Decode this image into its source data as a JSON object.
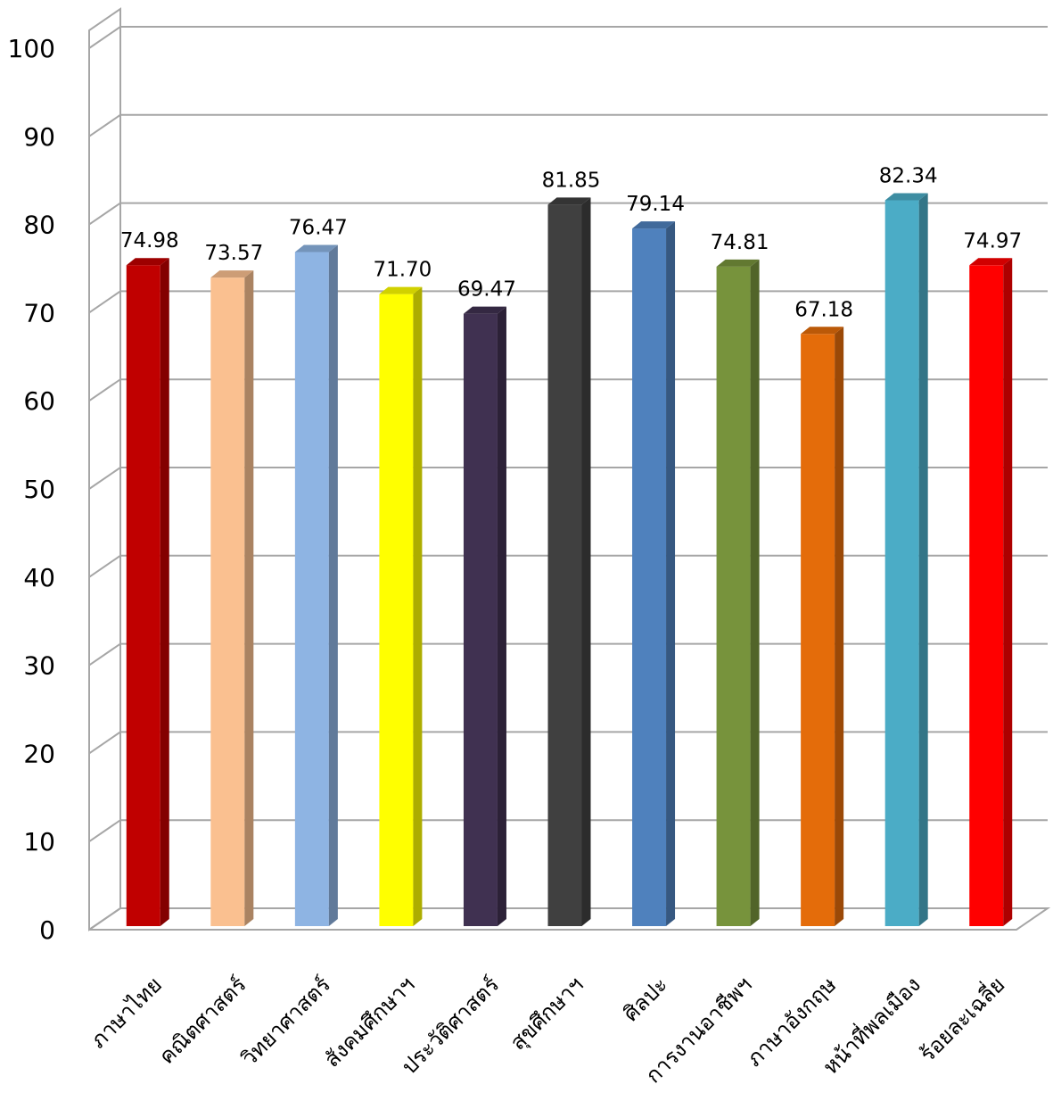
{
  "chart_data": {
    "type": "bar",
    "title": "",
    "xlabel": "",
    "ylabel": "",
    "ylim": [
      0,
      100
    ],
    "yticks": [
      0,
      10,
      20,
      30,
      40,
      50,
      60,
      70,
      80,
      90,
      100
    ],
    "grid": true,
    "style": "3d-column",
    "categories": [
      "ภาษาไทย",
      "คณิตศาสตร์",
      "วิทยาศาสตร์",
      "สังคมศึกษาฯ",
      "ประวัติศาสตร์",
      "สุขศึกษาฯ",
      "ศิลปะ",
      "การงานอาชีพฯ",
      "ภาษาอังกฤษ",
      "หน้าที่พลเมือง",
      "ร้อยละเฉลี่ย"
    ],
    "values": [
      74.98,
      73.57,
      76.47,
      71.7,
      69.47,
      81.85,
      79.14,
      74.81,
      67.18,
      82.34,
      74.97
    ],
    "value_labels": [
      "74.98",
      "73.57",
      "76.47",
      "71.70",
      "69.47",
      "81.85",
      "79.14",
      "74.81",
      "67.18",
      "82.34",
      "74.97"
    ],
    "colors": [
      "#C00000",
      "#FAC090",
      "#8EB4E3",
      "#FFFF00",
      "#403151",
      "#404040",
      "#4F81BD",
      "#77933C",
      "#E46C0A",
      "#4BACC6",
      "#FF0000"
    ]
  }
}
